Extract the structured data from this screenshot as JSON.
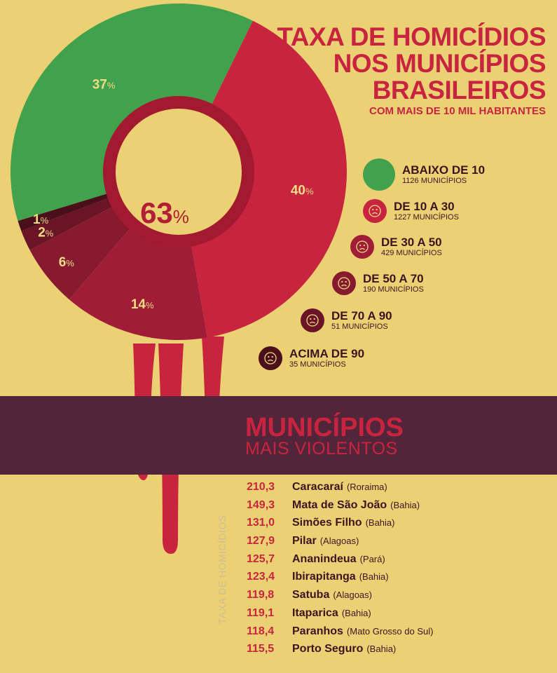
{
  "title": {
    "line1": "TAXA DE HOMICÍDIOS",
    "line2": "NOS MUNICÍPIOS",
    "line3": "BRASILEIROS",
    "subtitle": "COM MAIS DE 10 MIL HABITANTES"
  },
  "chart_data": {
    "type": "pie",
    "center_label": {
      "value": "63",
      "unit": "%"
    },
    "slices": [
      {
        "label": "ABAIXO DE 10",
        "value": 37,
        "display": "37",
        "count": "1126 MUNICÍPIOS",
        "color": "#42a14c"
      },
      {
        "label": "DE 10 A 30",
        "value": 40,
        "display": "40",
        "count": "1227 MUNICÍPIOS",
        "color": "#c8243f"
      },
      {
        "label": "DE 30 A 50",
        "value": 14,
        "display": "14",
        "count": "429 MUNICÍPIOS",
        "color": "#a11c36"
      },
      {
        "label": "DE 50 A 70",
        "value": 6,
        "display": "6",
        "count": "190 MUNICÍPIOS",
        "color": "#871a2f"
      },
      {
        "label": "DE 70 A 90",
        "value": 2,
        "display": "2",
        "count": "51 MUNICÍPIOS",
        "color": "#6a1425"
      },
      {
        "label": "ACIMA DE 90",
        "value": 1,
        "display": "1",
        "count": "35 MUNICÍPIOS",
        "color": "#4a0f1b"
      }
    ]
  },
  "ranking": {
    "title": "MUNICÍPIOS",
    "subtitle": "MAIS VIOLENTOS",
    "axis_label": "TAXA DE HOMICÍDIOS",
    "rows": [
      {
        "rate": "210,3",
        "city": "Caracaraí",
        "state": "(Roraima)"
      },
      {
        "rate": "149,3",
        "city": "Mata de São João",
        "state": "(Bahia)"
      },
      {
        "rate": "131,0",
        "city": "Simões Filho",
        "state": "(Bahia)"
      },
      {
        "rate": "127,9",
        "city": "Pilar",
        "state": "(Alagoas)"
      },
      {
        "rate": "125,7",
        "city": "Ananindeua",
        "state": "(Pará)"
      },
      {
        "rate": "123,4",
        "city": "Ibirapitanga",
        "state": "(Bahia)"
      },
      {
        "rate": "119,8",
        "city": "Satuba",
        "state": "(Alagoas)"
      },
      {
        "rate": "119,1",
        "city": "Itaparica",
        "state": "(Bahia)"
      },
      {
        "rate": "118,4",
        "city": "Paranhos",
        "state": "(Mato Grosso do Sul)"
      },
      {
        "rate": "115,5",
        "city": "Porto Seguro",
        "state": "(Bahia)"
      }
    ]
  }
}
